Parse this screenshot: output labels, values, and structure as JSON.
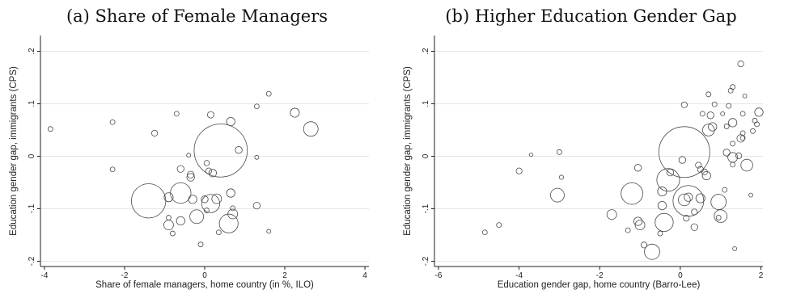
{
  "chart_data": [
    {
      "type": "scatter",
      "title": "(a) Share of Female Managers",
      "xlabel": "Share of female managers, home country (in %, ILO)",
      "ylabel": "Education gender gap, immigrants (CPS)",
      "xlim": [
        -4.1,
        4.1
      ],
      "ylim": [
        -0.21,
        0.23
      ],
      "xticks": [
        -4,
        -2,
        0,
        2,
        4
      ],
      "xtick_labels": [
        "-4",
        "-2",
        "0",
        "2",
        "4"
      ],
      "yticks": [
        -0.2,
        -0.1,
        0,
        0.1,
        0.2
      ],
      "ytick_labels": [
        "-.2",
        "-.1",
        "0",
        ".1",
        ".2"
      ],
      "grid": true,
      "points": [
        {
          "x": -3.85,
          "y": 0.052,
          "w": 1
        },
        {
          "x": -2.3,
          "y": 0.065,
          "w": 1
        },
        {
          "x": -2.3,
          "y": -0.025,
          "w": 1
        },
        {
          "x": -1.25,
          "y": 0.044,
          "w": 1.5
        },
        {
          "x": -0.7,
          "y": 0.081,
          "w": 1
        },
        {
          "x": -0.4,
          "y": 0.002,
          "w": 0.7
        },
        {
          "x": 0.15,
          "y": 0.079,
          "w": 1.8
        },
        {
          "x": 0.65,
          "y": 0.066,
          "w": 3
        },
        {
          "x": 1.3,
          "y": 0.095,
          "w": 1
        },
        {
          "x": 1.6,
          "y": 0.119,
          "w": 1
        },
        {
          "x": 2.25,
          "y": 0.083,
          "w": 3.5
        },
        {
          "x": 2.65,
          "y": 0.052,
          "w": 9
        },
        {
          "x": 1.3,
          "y": -0.002,
          "w": 0.7
        },
        {
          "x": 0.4,
          "y": 0.011,
          "w": 120
        },
        {
          "x": 0.85,
          "y": 0.012,
          "w": 2
        },
        {
          "x": -0.6,
          "y": -0.024,
          "w": 2
        },
        {
          "x": -0.35,
          "y": -0.035,
          "w": 2
        },
        {
          "x": -0.35,
          "y": -0.04,
          "w": 2.5
        },
        {
          "x": 0.05,
          "y": -0.013,
          "w": 1.2
        },
        {
          "x": 0.1,
          "y": -0.028,
          "w": 1.5
        },
        {
          "x": 0.2,
          "y": -0.032,
          "w": 2.5
        },
        {
          "x": -1.4,
          "y": -0.085,
          "w": 50
        },
        {
          "x": -0.9,
          "y": -0.078,
          "w": 3.5
        },
        {
          "x": -0.6,
          "y": -0.07,
          "w": 18
        },
        {
          "x": -0.3,
          "y": -0.082,
          "w": 3
        },
        {
          "x": 0.0,
          "y": -0.082,
          "w": 2
        },
        {
          "x": 0.3,
          "y": -0.081,
          "w": 4
        },
        {
          "x": 0.15,
          "y": -0.09,
          "w": 14
        },
        {
          "x": 0.65,
          "y": -0.07,
          "w": 3
        },
        {
          "x": 1.3,
          "y": -0.094,
          "w": 2
        },
        {
          "x": -0.9,
          "y": -0.117,
          "w": 1
        },
        {
          "x": -0.9,
          "y": -0.131,
          "w": 4
        },
        {
          "x": -0.8,
          "y": -0.147,
          "w": 1
        },
        {
          "x": -0.6,
          "y": -0.123,
          "w": 3
        },
        {
          "x": -0.2,
          "y": -0.115,
          "w": 8
        },
        {
          "x": 0.05,
          "y": -0.103,
          "w": 1
        },
        {
          "x": 0.35,
          "y": -0.145,
          "w": 1
        },
        {
          "x": 0.7,
          "y": -0.099,
          "w": 1
        },
        {
          "x": 0.7,
          "y": -0.11,
          "w": 4
        },
        {
          "x": 0.6,
          "y": -0.128,
          "w": 15
        },
        {
          "x": -0.1,
          "y": -0.168,
          "w": 1
        },
        {
          "x": 1.6,
          "y": -0.143,
          "w": 0.7
        }
      ]
    },
    {
      "type": "scatter",
      "title": "(b) Higher Education Gender Gap",
      "xlabel": "Education gender gap, home country (Barro-Lee)",
      "ylabel": "Education gender gap, immigrants (CPS)",
      "xlim": [
        -6.1,
        2.05
      ],
      "ylim": [
        -0.21,
        0.23
      ],
      "xticks": [
        -6,
        -4,
        -2,
        0,
        2
      ],
      "xtick_labels": [
        "-6",
        "-4",
        "-2",
        "0",
        "2"
      ],
      "yticks": [
        -0.2,
        -0.1,
        0,
        0.1,
        0.2
      ],
      "ytick_labels": [
        "-.2",
        "-.1",
        "0",
        ".1",
        ".2"
      ],
      "grid": true,
      "points": [
        {
          "x": -4.85,
          "y": -0.145,
          "w": 1
        },
        {
          "x": -4.5,
          "y": -0.131,
          "w": 1
        },
        {
          "x": -4.0,
          "y": -0.028,
          "w": 1.5
        },
        {
          "x": -3.7,
          "y": 0.003,
          "w": 0.5
        },
        {
          "x": -3.0,
          "y": 0.008,
          "w": 1
        },
        {
          "x": -2.95,
          "y": -0.04,
          "w": 0.8
        },
        {
          "x": -3.05,
          "y": -0.074,
          "w": 8
        },
        {
          "x": -1.7,
          "y": -0.111,
          "w": 4
        },
        {
          "x": -1.3,
          "y": -0.141,
          "w": 1
        },
        {
          "x": -1.05,
          "y": -0.022,
          "w": 2
        },
        {
          "x": -1.05,
          "y": -0.124,
          "w": 3
        },
        {
          "x": -1.0,
          "y": -0.131,
          "w": 4
        },
        {
          "x": -0.9,
          "y": -0.169,
          "w": 1.5
        },
        {
          "x": -1.2,
          "y": -0.071,
          "w": 20
        },
        {
          "x": -0.7,
          "y": -0.182,
          "w": 10
        },
        {
          "x": -0.5,
          "y": -0.147,
          "w": 1
        },
        {
          "x": -0.45,
          "y": -0.067,
          "w": 3.5
        },
        {
          "x": -0.4,
          "y": -0.126,
          "w": 14
        },
        {
          "x": -0.3,
          "y": -0.045,
          "w": 22
        },
        {
          "x": -0.45,
          "y": -0.094,
          "w": 3
        },
        {
          "x": -0.25,
          "y": -0.031,
          "w": 2
        },
        {
          "x": 0.05,
          "y": -0.007,
          "w": 2
        },
        {
          "x": 0.1,
          "y": 0.098,
          "w": 1.5
        },
        {
          "x": 0.1,
          "y": 0.008,
          "w": 110
        },
        {
          "x": 0.1,
          "y": -0.083,
          "w": 6
        },
        {
          "x": 0.15,
          "y": -0.118,
          "w": 1.5
        },
        {
          "x": 0.2,
          "y": -0.078,
          "w": 3
        },
        {
          "x": 0.2,
          "y": -0.085,
          "w": 40
        },
        {
          "x": 0.35,
          "y": -0.106,
          "w": 1.5
        },
        {
          "x": 0.35,
          "y": -0.135,
          "w": 2
        },
        {
          "x": 0.45,
          "y": -0.017,
          "w": 1.5
        },
        {
          "x": 0.5,
          "y": -0.025,
          "w": 1.5
        },
        {
          "x": 0.5,
          "y": -0.08,
          "w": 3.5
        },
        {
          "x": 0.55,
          "y": 0.081,
          "w": 1
        },
        {
          "x": 0.6,
          "y": -0.03,
          "w": 1.5
        },
        {
          "x": 0.65,
          "y": -0.037,
          "w": 3
        },
        {
          "x": 0.7,
          "y": 0.05,
          "w": 6
        },
        {
          "x": 0.7,
          "y": 0.118,
          "w": 1
        },
        {
          "x": 0.75,
          "y": 0.078,
          "w": 2
        },
        {
          "x": 0.8,
          "y": 0.056,
          "w": 3
        },
        {
          "x": 0.85,
          "y": 0.099,
          "w": 1
        },
        {
          "x": 0.95,
          "y": -0.117,
          "w": 1
        },
        {
          "x": 0.95,
          "y": -0.087,
          "w": 10
        },
        {
          "x": 1.0,
          "y": -0.114,
          "w": 7
        },
        {
          "x": 1.05,
          "y": 0.081,
          "w": 0.7
        },
        {
          "x": 1.1,
          "y": -0.064,
          "w": 1
        },
        {
          "x": 1.15,
          "y": 0.057,
          "w": 1
        },
        {
          "x": 1.15,
          "y": 0.007,
          "w": 2
        },
        {
          "x": 1.2,
          "y": 0.096,
          "w": 1
        },
        {
          "x": 1.25,
          "y": 0.125,
          "w": 1
        },
        {
          "x": 1.3,
          "y": 0.132,
          "w": 1
        },
        {
          "x": 1.3,
          "y": 0.064,
          "w": 3
        },
        {
          "x": 1.3,
          "y": -0.002,
          "w": 4
        },
        {
          "x": 1.3,
          "y": -0.016,
          "w": 1
        },
        {
          "x": 1.3,
          "y": 0.024,
          "w": 1
        },
        {
          "x": 1.35,
          "y": -0.176,
          "w": 0.7
        },
        {
          "x": 1.45,
          "y": 0.001,
          "w": 1.5
        },
        {
          "x": 1.5,
          "y": 0.034,
          "w": 2.5
        },
        {
          "x": 1.55,
          "y": 0.044,
          "w": 1
        },
        {
          "x": 1.5,
          "y": 0.176,
          "w": 1.5
        },
        {
          "x": 1.55,
          "y": 0.081,
          "w": 1
        },
        {
          "x": 1.6,
          "y": 0.115,
          "w": 0.7
        },
        {
          "x": 1.65,
          "y": -0.017,
          "w": 6
        },
        {
          "x": 1.75,
          "y": -0.074,
          "w": 0.7
        },
        {
          "x": 1.8,
          "y": 0.048,
          "w": 1
        },
        {
          "x": 1.95,
          "y": 0.084,
          "w": 3
        },
        {
          "x": 1.9,
          "y": 0.061,
          "w": 1
        },
        {
          "x": 1.85,
          "y": 0.068,
          "w": 1
        },
        {
          "x": 1.55,
          "y": 0.035,
          "w": 1
        }
      ]
    }
  ]
}
